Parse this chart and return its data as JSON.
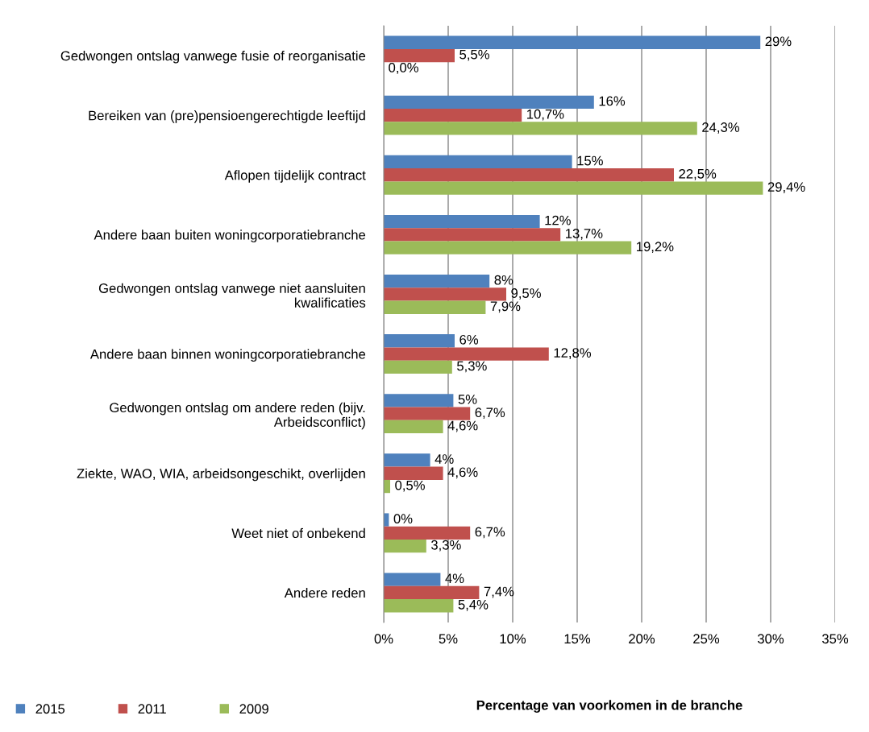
{
  "chart_data": {
    "type": "bar",
    "orientation": "horizontal",
    "xlabel": "Percentage van voorkomen in de branche",
    "categories": [
      "Gedwongen ontslag vanwege fusie of reorganisatie",
      "Bereiken van (pre)pensioengerechtigde leeftijd",
      "Aflopen tijdelijk contract",
      "Andere baan buiten woningcorporatiebranche",
      "Gedwongen ontslag vanwege niet aansluiten\nkwalificaties",
      "Andere baan binnen woningcorporatiebranche",
      "Gedwongen ontslag om andere reden (bijv.\nArbeidsconflict)",
      "Ziekte, WAO, WIA, arbeidsongeschikt, overlijden",
      "Weet niet of onbekend",
      "Andere reden"
    ],
    "series": [
      {
        "name": "2015",
        "color": "#4f81bd",
        "values": [
          29.2,
          16.3,
          14.6,
          12.1,
          8.2,
          5.5,
          5.4,
          3.6,
          0.4,
          4.4
        ],
        "value_labels": [
          "29%",
          "16%",
          "15%",
          "12%",
          "8%",
          "6%",
          "5%",
          "4%",
          "0%",
          "4%"
        ]
      },
      {
        "name": "2011",
        "color": "#c0504d",
        "values": [
          5.5,
          10.7,
          22.5,
          13.7,
          9.5,
          12.8,
          6.7,
          4.6,
          6.7,
          7.4
        ],
        "value_labels": [
          "5,5%",
          "10,7%",
          "22,5%",
          "13,7%",
          "9,5%",
          "12,8%",
          "6,7%",
          "4,6%",
          "6,7%",
          "7,4%"
        ]
      },
      {
        "name": "2009",
        "color": "#9bbb59",
        "values": [
          0.0,
          24.3,
          29.4,
          19.2,
          7.9,
          5.3,
          4.6,
          0.5,
          3.3,
          5.4
        ],
        "value_labels": [
          "0,0%",
          "24,3%",
          "29,4%",
          "19,2%",
          "7,9%",
          "5,3%",
          "4,6%",
          "0,5%",
          "3,3%",
          "5,4%"
        ]
      }
    ],
    "xlim": [
      0,
      35
    ],
    "xticks": [
      {
        "value": 0,
        "label": "0%"
      },
      {
        "value": 5,
        "label": "5%"
      },
      {
        "value": 10,
        "label": "10%"
      },
      {
        "value": 15,
        "label": "15%"
      },
      {
        "value": 20,
        "label": "20%"
      },
      {
        "value": 25,
        "label": "25%"
      },
      {
        "value": 30,
        "label": "30%"
      },
      {
        "value": 35,
        "label": "35%"
      }
    ],
    "grid": "x",
    "legend": "bottom left"
  }
}
